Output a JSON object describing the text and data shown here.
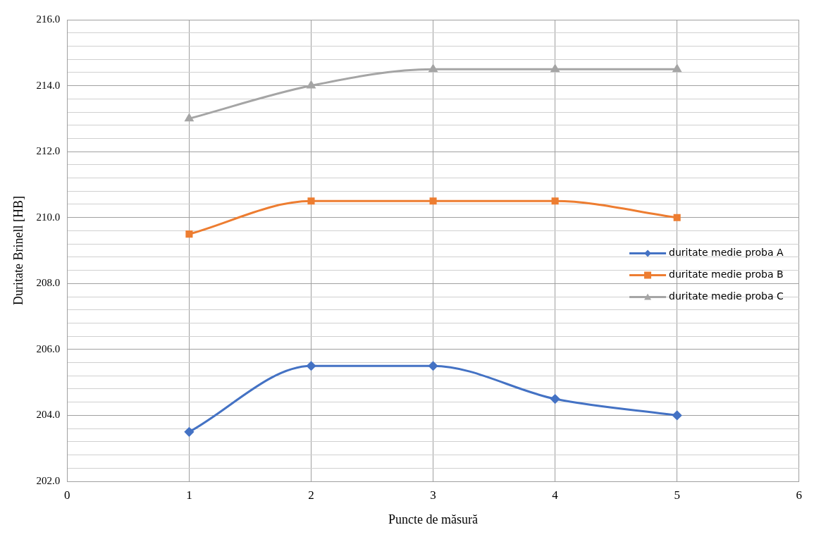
{
  "chart_data": {
    "type": "line",
    "xlabel": "Puncte de măsură",
    "ylabel": "Duritate Brinell [HB]",
    "x": [
      1,
      2,
      3,
      4,
      5
    ],
    "xlim": [
      0,
      6
    ],
    "xticks": [
      0,
      1,
      2,
      3,
      4,
      5,
      6
    ],
    "ylim": [
      202,
      216
    ],
    "yticks": [
      {
        "value": 202,
        "label": "202.0"
      },
      {
        "value": 202.4,
        "label": null
      },
      {
        "value": 202.8,
        "label": null
      },
      {
        "value": 203.2,
        "label": null
      },
      {
        "value": 203.6,
        "label": null
      },
      {
        "value": 204,
        "label": "204.0"
      },
      {
        "value": 204.4,
        "label": null
      },
      {
        "value": 204.8,
        "label": null
      },
      {
        "value": 205.2,
        "label": null
      },
      {
        "value": 205.6,
        "label": null
      },
      {
        "value": 206,
        "label": "206.0"
      },
      {
        "value": 206.4,
        "label": null
      },
      {
        "value": 206.8,
        "label": null
      },
      {
        "value": 207.2,
        "label": null
      },
      {
        "value": 207.6,
        "label": null
      },
      {
        "value": 208,
        "label": "208.0"
      },
      {
        "value": 208.4,
        "label": null
      },
      {
        "value": 208.8,
        "label": null
      },
      {
        "value": 209.2,
        "label": null
      },
      {
        "value": 209.6,
        "label": null
      },
      {
        "value": 210,
        "label": "210.0"
      },
      {
        "value": 210.4,
        "label": null
      },
      {
        "value": 210.8,
        "label": null
      },
      {
        "value": 211.2,
        "label": null
      },
      {
        "value": 211.6,
        "label": null
      },
      {
        "value": 212,
        "label": "212.0"
      },
      {
        "value": 212.4,
        "label": null
      },
      {
        "value": 212.8,
        "label": null
      },
      {
        "value": 213.2,
        "label": null
      },
      {
        "value": 213.6,
        "label": null
      },
      {
        "value": 214,
        "label": "214.0"
      },
      {
        "value": 214.4,
        "label": null
      },
      {
        "value": 214.8,
        "label": null
      },
      {
        "value": 215.2,
        "label": null
      },
      {
        "value": 215.6,
        "label": null
      },
      {
        "value": 216,
        "label": "216.0"
      }
    ],
    "grid": true,
    "legend": "right",
    "line_style": "solid",
    "series": [
      {
        "name": "duritate medie proba A",
        "color": "#4472c4",
        "marker": "diamond",
        "values": [
          203.5,
          205.5,
          205.5,
          204.5,
          204.0
        ]
      },
      {
        "name": "duritate medie proba B",
        "color": "#ed7d31",
        "marker": "square",
        "values": [
          209.5,
          210.5,
          210.5,
          210.5,
          210.0
        ]
      },
      {
        "name": "duritate medie proba C",
        "color": "#a5a5a5",
        "marker": "triangle",
        "values": [
          213,
          214,
          214.5,
          214.5,
          214.5
        ]
      }
    ]
  }
}
